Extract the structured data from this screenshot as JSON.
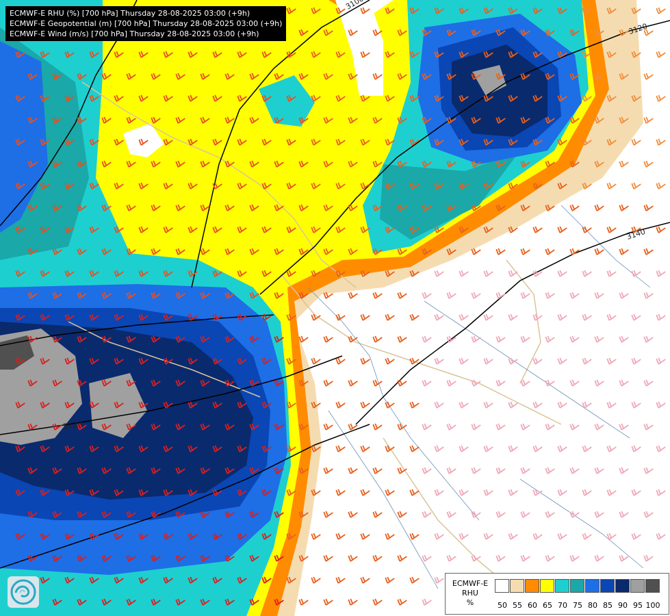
{
  "header": {
    "lines": [
      "ECMWF-E RHU (%) [700 hPa] Thursday 28-08-2025 03:00 (+9h)",
      "ECMWF-E Geopotential (m) [700 hPa] Thursday 28-08-2025 03:00 (+9h)",
      "ECMWF-E Wind (m/s) [700 hPa] Thursday 28-08-2025 03:00 (+9h)"
    ]
  },
  "legend": {
    "title_line1": "ECMWF-E",
    "title_line2": "RHU",
    "unit": "%",
    "ticks": [
      "50",
      "55",
      "60",
      "65",
      "70",
      "75",
      "80",
      "85",
      "90",
      "95",
      "100"
    ],
    "colors": [
      "#ffffff",
      "#f5dcb0",
      "#ff8c00",
      "#ffff00",
      "#1ecfd0",
      "#1aa8a8",
      "#1e6ee6",
      "#0a46b4",
      "#0a2a6e",
      "#a0a0a0",
      "#505050"
    ]
  },
  "contours": {
    "labels": [
      "3100",
      "3120",
      "3140",
      "3120"
    ]
  },
  "icons": {
    "logo": "ecmwf-logo-icon",
    "wind": "wind-barb-icon"
  }
}
